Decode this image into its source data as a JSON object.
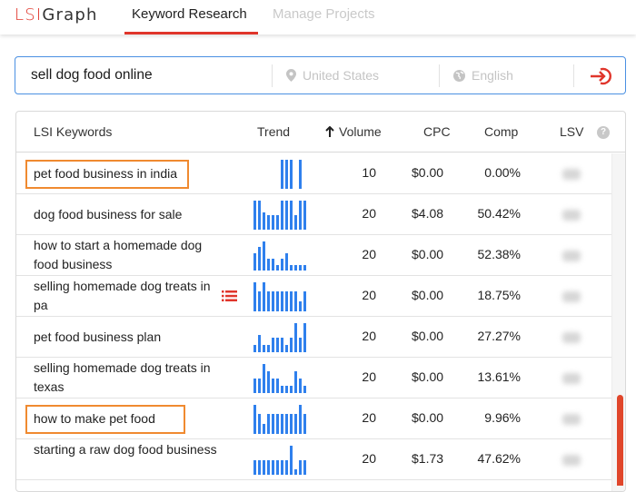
{
  "header": {
    "logo_lsi": "LSI",
    "logo_graph": "Graph",
    "tabs": [
      {
        "label": "Keyword Research",
        "active": true
      },
      {
        "label": "Manage Projects",
        "active": false
      }
    ]
  },
  "search": {
    "query": "sell dog food online",
    "location_placeholder": "United States",
    "language_placeholder": "English",
    "submit_icon": "sign-in-arrow-icon"
  },
  "table": {
    "columns": {
      "keyword": "LSI Keywords",
      "trend": "Trend",
      "volume": "Volume",
      "volume_sort_icon": "arrow-up-icon",
      "cpc": "CPC",
      "comp": "Comp",
      "lsv": "LSV",
      "help": "?"
    },
    "rows": [
      {
        "keyword": "pet food business in india",
        "highlighted": true,
        "volume": "10",
        "cpc": "$0.00",
        "comp": "0.00%",
        "trend": [
          0,
          0,
          0,
          0,
          0,
          0,
          1,
          1,
          1,
          0,
          1,
          0,
          0
        ]
      },
      {
        "keyword": "dog food business for sale",
        "highlighted": false,
        "volume": "20",
        "cpc": "$4.08",
        "comp": "50.42%",
        "trend": [
          1,
          1,
          0.6,
          0.5,
          0.5,
          0.5,
          1,
          1,
          1,
          0.5,
          1,
          1
        ]
      },
      {
        "keyword": "how to start a homemade dog food business",
        "highlighted": false,
        "volume": "20",
        "cpc": "$0.00",
        "comp": "52.38%",
        "trend": [
          0.6,
          0.8,
          1,
          0.4,
          0.4,
          0.2,
          0.4,
          0.6,
          0.2,
          0.2,
          0.2,
          0.2
        ]
      },
      {
        "keyword": "selling homemade dog treats in pa",
        "highlighted": false,
        "has_list_icon": true,
        "volume": "20",
        "cpc": "$0.00",
        "comp": "18.75%",
        "trend": [
          1,
          0.7,
          1,
          0.7,
          0.7,
          0.7,
          0.7,
          0.7,
          0.7,
          0.7,
          0.35,
          0.7
        ]
      },
      {
        "keyword": "pet food business plan",
        "highlighted": false,
        "volume": "20",
        "cpc": "$0.00",
        "comp": "27.27%",
        "trend": [
          0.25,
          0.6,
          0.25,
          0.25,
          0.5,
          0.5,
          0.5,
          0.25,
          0.5,
          1,
          0.5,
          1
        ]
      },
      {
        "keyword": "selling homemade dog treats in texas",
        "highlighted": false,
        "volume": "20",
        "cpc": "$0.00",
        "comp": "13.61%",
        "trend": [
          0.5,
          0.5,
          1,
          0.75,
          0.5,
          0.5,
          0.25,
          0.25,
          0.25,
          0.75,
          0.5,
          0.25
        ]
      },
      {
        "keyword": "how to make pet food",
        "highlighted": true,
        "volume": "20",
        "cpc": "$0.00",
        "comp": "9.96%",
        "trend": [
          1,
          0.7,
          0.35,
          0.7,
          0.7,
          0.7,
          0.7,
          0.7,
          0.7,
          0.7,
          1,
          0.7
        ]
      },
      {
        "keyword": "starting a raw dog food business",
        "highlighted": false,
        "volume": "20",
        "cpc": "$1.73",
        "comp": "47.62%",
        "trend": [
          0.5,
          0.5,
          0.5,
          0.5,
          0.5,
          0.5,
          0.5,
          0.5,
          1,
          0.2,
          0.5,
          0.5
        ]
      }
    ]
  },
  "colors": {
    "brand_red": "#e0352b",
    "accent_blue": "#4a90e2",
    "trend_bar": "#2f80ed",
    "highlight_orange": "#f08a30",
    "scroll_thumb": "#e0462b"
  }
}
